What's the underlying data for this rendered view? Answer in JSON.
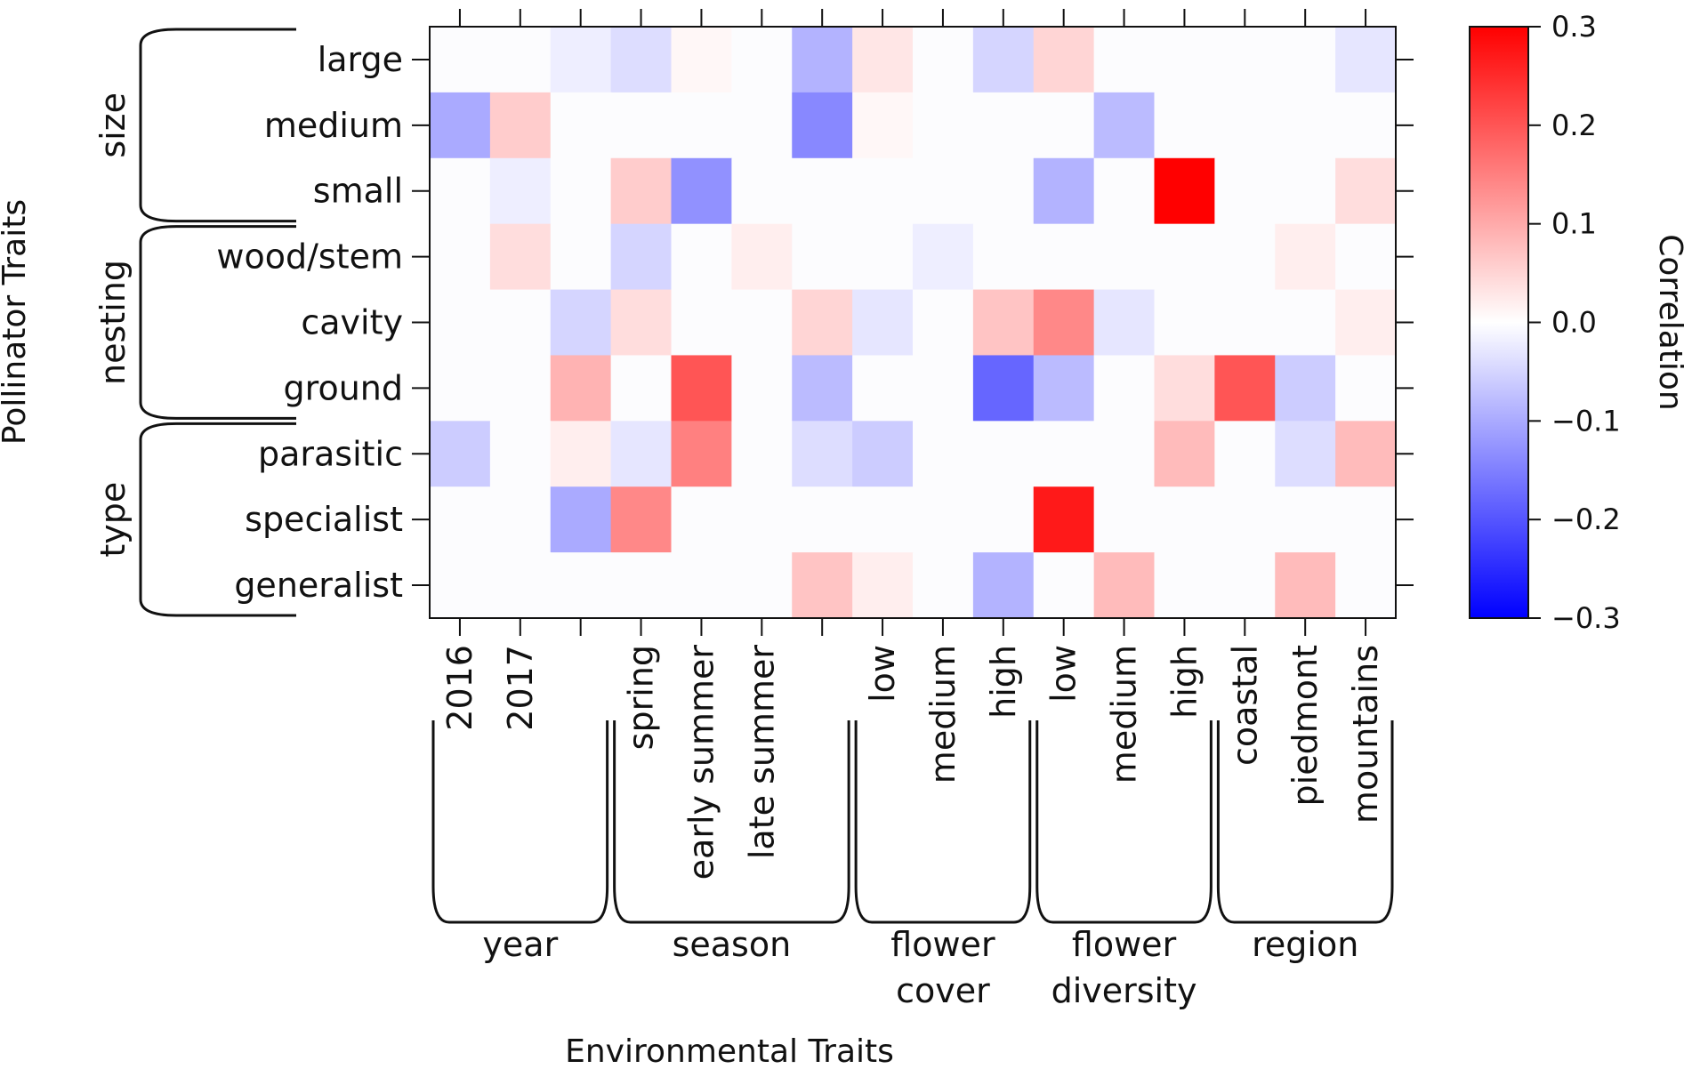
{
  "chart_data": {
    "type": "heatmap",
    "xlabel": "Environmental Traits",
    "ylabel": "Pollinator Traits",
    "x_categories": [
      "2016",
      "2017",
      "",
      "spring",
      "early summer",
      "late summer",
      "",
      "low",
      "medium",
      "high",
      "low",
      "medium",
      "high",
      "coastal",
      "piedmont",
      "mountains"
    ],
    "x_groups": [
      {
        "label": "year",
        "columns": [
          0,
          2
        ]
      },
      {
        "label": "season",
        "columns": [
          3,
          6
        ]
      },
      {
        "label": "flower cover",
        "lines": [
          "flower",
          "cover"
        ],
        "columns": [
          7,
          9
        ]
      },
      {
        "label": "flower diversity",
        "lines": [
          "flower",
          "diversity"
        ],
        "columns": [
          10,
          12
        ]
      },
      {
        "label": "region",
        "columns": [
          13,
          15
        ]
      }
    ],
    "y_categories": [
      "large",
      "medium",
      "small",
      "wood/stem",
      "cavity",
      "ground",
      "parasitic",
      "specialist",
      "generalist"
    ],
    "y_groups": [
      {
        "label": "size",
        "rows": [
          0,
          2
        ]
      },
      {
        "label": "nesting",
        "rows": [
          3,
          5
        ]
      },
      {
        "label": "type",
        "rows": [
          6,
          8
        ]
      }
    ],
    "values": [
      [
        0,
        0,
        -0.02,
        -0.04,
        0.01,
        0,
        -0.09,
        0.03,
        0,
        -0.05,
        0.05,
        0,
        0,
        0,
        0,
        -0.03
      ],
      [
        -0.1,
        0.06,
        0,
        0,
        0,
        0,
        -0.14,
        0.01,
        0,
        0,
        0,
        -0.08,
        0,
        0,
        0,
        0
      ],
      [
        0,
        -0.02,
        0,
        0.06,
        -0.13,
        0,
        0,
        0,
        0,
        0,
        -0.09,
        0,
        0.3,
        0,
        0,
        0.04
      ],
      [
        0,
        0.04,
        0,
        -0.05,
        0,
        0.02,
        0,
        0,
        -0.02,
        0,
        0,
        0,
        0,
        0,
        0.02,
        0
      ],
      [
        0,
        0,
        -0.05,
        0.04,
        0,
        0,
        0.05,
        -0.03,
        0,
        0.07,
        0.14,
        -0.03,
        0,
        0,
        0,
        0.02
      ],
      [
        0,
        0,
        0.09,
        0,
        0.2,
        0,
        -0.08,
        0,
        0,
        -0.18,
        -0.08,
        0,
        0.04,
        0.2,
        -0.06,
        0
      ],
      [
        -0.06,
        0,
        0.02,
        -0.03,
        0.15,
        0,
        -0.04,
        -0.06,
        0,
        0,
        0,
        0,
        0.08,
        0,
        -0.04,
        0.08
      ],
      [
        0,
        0,
        -0.1,
        0.14,
        0,
        0,
        0,
        0,
        0,
        0,
        0.27,
        0,
        0,
        0,
        0,
        0
      ],
      [
        0,
        0,
        0,
        0,
        0,
        0,
        0.07,
        0.02,
        0,
        -0.09,
        0,
        0.08,
        0,
        0,
        0.08,
        0
      ]
    ],
    "colorbar": {
      "title": "Correlation",
      "range": [
        -0.3,
        0.3
      ],
      "ticks": [
        0.3,
        0.2,
        0.1,
        0.0,
        -0.1,
        -0.2,
        -0.3
      ],
      "tick_labels": [
        "0.3",
        "0.2",
        "0.1",
        "0.0",
        "−0.1",
        "−0.2",
        "−0.3"
      ],
      "low_color": "#0000ff",
      "mid_color": "#ffffff",
      "high_color": "#ff0000"
    },
    "neutral_cell_color": "#fcfcfe",
    "grid": false
  }
}
